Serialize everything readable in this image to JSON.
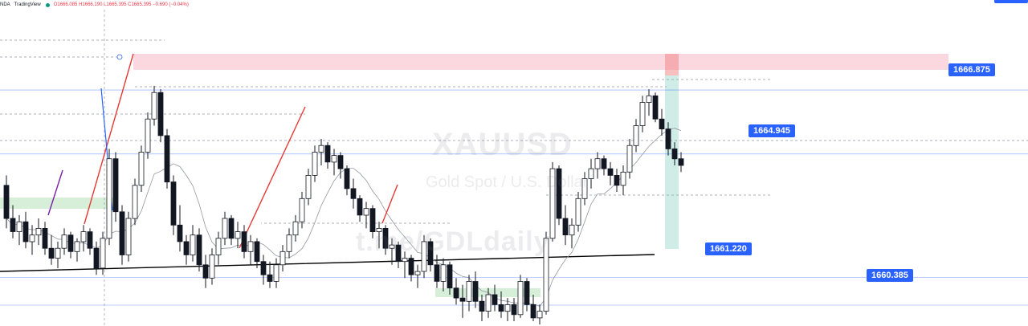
{
  "header": {
    "symbol": "NDA",
    "source": "TradingView",
    "ohlc": "O1666.085 H1666.190 L1665.395 C1665.395 −0.690 (−0.04%)",
    "status_color": "#089981",
    "ohlc_color": "#f23645"
  },
  "watermark": {
    "symbol": "XAUUSD",
    "description": "Gold Spot / U.S. Dollar",
    "url": "t.me/GDLdaily"
  },
  "price_labels": [
    {
      "id": "resistance",
      "text": "1666.875",
      "price": 1666.875
    },
    {
      "id": "current",
      "text": "1664.945",
      "price": 1664.945
    },
    {
      "id": "support-1",
      "text": "1661.220",
      "price": 1661.22
    },
    {
      "id": "support-2",
      "text": "1660.385",
      "price": 1660.385
    }
  ],
  "colors": {
    "up": "#ffffff",
    "down": "#131722",
    "label_bg": "#2962ff",
    "resistance_zone": "#f7b6c4",
    "demand_zone": "#cdebd0",
    "target_zone": "#a8dcd1",
    "trendline": "#e53935",
    "moving_average": "#9598a1"
  },
  "chart_data": {
    "type": "candlestick",
    "symbol": "XAUUSD",
    "y_range": [
      1659.9,
      1669.3
    ],
    "ohlc": [
      [
        1664.0,
        1664.3,
        1662.7,
        1663.0
      ],
      [
        1663.0,
        1663.4,
        1662.4,
        1662.6
      ],
      [
        1662.6,
        1663.1,
        1662.2,
        1662.9
      ],
      [
        1662.9,
        1663.2,
        1662.1,
        1662.3
      ],
      [
        1662.3,
        1662.8,
        1661.9,
        1662.5
      ],
      [
        1662.5,
        1663.0,
        1662.2,
        1662.7
      ],
      [
        1662.7,
        1662.9,
        1661.9,
        1662.1
      ],
      [
        1662.1,
        1662.5,
        1661.6,
        1661.8
      ],
      [
        1661.8,
        1662.3,
        1661.5,
        1662.1
      ],
      [
        1662.1,
        1662.7,
        1661.9,
        1662.5
      ],
      [
        1662.5,
        1662.6,
        1661.8,
        1662.0
      ],
      [
        1662.0,
        1662.4,
        1661.7,
        1662.3
      ],
      [
        1662.3,
        1662.8,
        1662.0,
        1662.6
      ],
      [
        1662.6,
        1662.7,
        1661.9,
        1662.1
      ],
      [
        1662.1,
        1662.3,
        1661.3,
        1661.5
      ],
      [
        1661.5,
        1662.6,
        1661.3,
        1662.4
      ],
      [
        1662.4,
        1665.1,
        1662.2,
        1664.8
      ],
      [
        1664.8,
        1665.0,
        1662.9,
        1663.2
      ],
      [
        1663.2,
        1663.4,
        1661.6,
        1661.9
      ],
      [
        1661.9,
        1663.2,
        1661.7,
        1663.0
      ],
      [
        1663.0,
        1664.2,
        1662.8,
        1664.0
      ],
      [
        1664.0,
        1665.2,
        1663.8,
        1665.0
      ],
      [
        1665.0,
        1666.2,
        1664.8,
        1666.0
      ],
      [
        1666.0,
        1667.0,
        1665.8,
        1666.8
      ],
      [
        1666.8,
        1666.9,
        1665.3,
        1665.5
      ],
      [
        1665.5,
        1665.7,
        1663.9,
        1664.1
      ],
      [
        1664.1,
        1664.3,
        1662.5,
        1662.8
      ],
      [
        1662.8,
        1663.4,
        1662.0,
        1662.3
      ],
      [
        1662.3,
        1662.5,
        1661.6,
        1661.9
      ],
      [
        1661.9,
        1662.8,
        1661.7,
        1662.5
      ],
      [
        1662.5,
        1662.7,
        1661.4,
        1661.6
      ],
      [
        1661.6,
        1661.9,
        1660.9,
        1661.2
      ],
      [
        1661.2,
        1662.1,
        1661.0,
        1661.9
      ],
      [
        1661.9,
        1662.6,
        1661.6,
        1662.4
      ],
      [
        1662.4,
        1663.2,
        1662.2,
        1663.0
      ],
      [
        1663.0,
        1663.1,
        1662.2,
        1662.4
      ],
      [
        1662.4,
        1662.9,
        1662.1,
        1662.6
      ],
      [
        1662.6,
        1662.8,
        1661.8,
        1662.0
      ],
      [
        1662.0,
        1662.5,
        1661.6,
        1662.3
      ],
      [
        1662.3,
        1662.4,
        1661.5,
        1661.7
      ],
      [
        1661.7,
        1661.9,
        1661.0,
        1661.3
      ],
      [
        1661.3,
        1661.7,
        1660.9,
        1661.1
      ],
      [
        1661.1,
        1661.8,
        1660.9,
        1661.6
      ],
      [
        1661.6,
        1662.2,
        1661.4,
        1662.0
      ],
      [
        1662.0,
        1662.7,
        1661.8,
        1662.5
      ],
      [
        1662.5,
        1663.1,
        1662.3,
        1662.9
      ],
      [
        1662.9,
        1663.8,
        1662.7,
        1663.6
      ],
      [
        1663.6,
        1664.5,
        1663.4,
        1664.3
      ],
      [
        1664.3,
        1665.2,
        1664.1,
        1665.0
      ],
      [
        1665.0,
        1665.4,
        1664.6,
        1665.2
      ],
      [
        1665.2,
        1665.3,
        1664.5,
        1664.7
      ],
      [
        1664.7,
        1665.1,
        1664.3,
        1664.9
      ],
      [
        1664.9,
        1665.0,
        1664.2,
        1664.5
      ],
      [
        1664.5,
        1664.6,
        1663.7,
        1663.9
      ],
      [
        1663.9,
        1664.2,
        1663.3,
        1663.6
      ],
      [
        1663.6,
        1663.7,
        1662.9,
        1663.1
      ],
      [
        1663.1,
        1663.5,
        1662.7,
        1663.3
      ],
      [
        1663.3,
        1663.4,
        1662.4,
        1662.6
      ],
      [
        1662.6,
        1662.9,
        1662.1,
        1662.7
      ],
      [
        1662.7,
        1662.8,
        1661.9,
        1662.1
      ],
      [
        1662.1,
        1662.4,
        1661.6,
        1662.2
      ],
      [
        1662.2,
        1662.3,
        1661.5,
        1661.7
      ],
      [
        1661.7,
        1662.0,
        1661.2,
        1661.8
      ],
      [
        1661.8,
        1661.9,
        1661.1,
        1661.3
      ],
      [
        1661.3,
        1661.6,
        1660.9,
        1661.4
      ],
      [
        1661.4,
        1662.5,
        1661.2,
        1662.3
      ],
      [
        1662.3,
        1662.4,
        1661.4,
        1661.6
      ],
      [
        1661.6,
        1661.9,
        1660.9,
        1661.1
      ],
      [
        1661.1,
        1661.8,
        1660.8,
        1661.6
      ],
      [
        1661.6,
        1661.7,
        1660.7,
        1660.9
      ],
      [
        1660.9,
        1661.2,
        1660.4,
        1660.6
      ],
      [
        1660.6,
        1661.0,
        1660.0,
        1660.5
      ],
      [
        1660.5,
        1661.3,
        1660.2,
        1661.1
      ],
      [
        1661.1,
        1661.4,
        1660.3,
        1660.5
      ],
      [
        1660.5,
        1660.7,
        1659.9,
        1660.2
      ],
      [
        1660.2,
        1660.9,
        1660.0,
        1660.7
      ],
      [
        1660.7,
        1661.0,
        1660.2,
        1660.4
      ],
      [
        1660.4,
        1660.8,
        1660.0,
        1660.2
      ],
      [
        1660.2,
        1660.6,
        1659.9,
        1660.4
      ],
      [
        1660.4,
        1660.6,
        1659.9,
        1660.1
      ],
      [
        1660.1,
        1661.3,
        1660.0,
        1661.1
      ],
      [
        1661.1,
        1661.2,
        1660.2,
        1660.4
      ],
      [
        1660.4,
        1660.7,
        1659.9,
        1660.0
      ],
      [
        1660.0,
        1660.4,
        1659.8,
        1660.2
      ],
      [
        1660.2,
        1662.6,
        1660.1,
        1662.4
      ],
      [
        1662.4,
        1664.7,
        1662.3,
        1664.5
      ],
      [
        1664.5,
        1664.6,
        1662.8,
        1663.0
      ],
      [
        1663.0,
        1663.4,
        1662.2,
        1662.5
      ],
      [
        1662.5,
        1663.0,
        1662.1,
        1662.8
      ],
      [
        1662.8,
        1663.8,
        1662.6,
        1663.6
      ],
      [
        1663.6,
        1664.4,
        1663.4,
        1664.2
      ],
      [
        1664.2,
        1664.8,
        1663.9,
        1664.5
      ],
      [
        1664.5,
        1665.0,
        1664.2,
        1664.8
      ],
      [
        1664.8,
        1664.9,
        1664.3,
        1664.5
      ],
      [
        1664.5,
        1664.7,
        1664.0,
        1664.3
      ],
      [
        1664.3,
        1664.5,
        1663.8,
        1664.0
      ],
      [
        1664.0,
        1664.6,
        1663.7,
        1664.4
      ],
      [
        1664.4,
        1665.4,
        1664.2,
        1665.2
      ],
      [
        1665.2,
        1666.0,
        1665.0,
        1665.8
      ],
      [
        1665.8,
        1666.7,
        1665.6,
        1666.5
      ],
      [
        1666.5,
        1666.9,
        1666.1,
        1666.7
      ],
      [
        1666.7,
        1666.8,
        1665.9,
        1666.0
      ],
      [
        1666.0,
        1666.3,
        1665.5,
        1665.7
      ],
      [
        1665.7,
        1665.9,
        1664.9,
        1665.1
      ],
      [
        1665.1,
        1665.3,
        1664.6,
        1664.8
      ],
      [
        1664.8,
        1665.0,
        1664.4,
        1664.6
      ]
    ]
  }
}
